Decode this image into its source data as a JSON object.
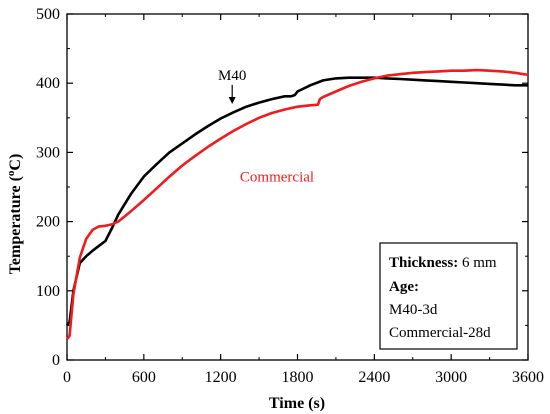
{
  "chart_data": {
    "type": "line",
    "xlabel": "Time (s)",
    "ylabel_main": "Temperature (",
    "ylabel_sup": "o",
    "ylabel_tail": "C)",
    "xlim": [
      0,
      3600
    ],
    "ylim": [
      0,
      500
    ],
    "x_ticks": [
      0,
      600,
      1200,
      1800,
      2400,
      3000,
      3600
    ],
    "y_ticks": [
      0,
      100,
      200,
      300,
      400,
      500
    ],
    "grid": false,
    "series": [
      {
        "name": "M40",
        "color": "#000000",
        "x": [
          0,
          20,
          50,
          100,
          150,
          200,
          250,
          300,
          350,
          400,
          500,
          600,
          700,
          800,
          900,
          1000,
          1100,
          1200,
          1300,
          1400,
          1500,
          1600,
          1700,
          1750,
          1780,
          1800,
          1900,
          2000,
          2100,
          2200,
          2300,
          2400,
          2500,
          2600,
          2700,
          2800,
          2900,
          3000,
          3100,
          3200,
          3300,
          3400,
          3500,
          3600
        ],
        "y": [
          50,
          55,
          100,
          140,
          150,
          158,
          165,
          172,
          190,
          210,
          240,
          265,
          283,
          300,
          313,
          326,
          338,
          349,
          358,
          366,
          372,
          377,
          381,
          381,
          383,
          388,
          397,
          404,
          407,
          408,
          408,
          408,
          407,
          406,
          405,
          404,
          403,
          402,
          401,
          400,
          399,
          398,
          397,
          397
        ]
      },
      {
        "name": "Commercial",
        "color": "#ee1c1c",
        "x": [
          0,
          20,
          50,
          100,
          150,
          200,
          250,
          300,
          350,
          400,
          500,
          600,
          700,
          800,
          900,
          1000,
          1100,
          1200,
          1300,
          1400,
          1500,
          1600,
          1700,
          1800,
          1900,
          1960,
          1975,
          2000,
          2100,
          2200,
          2300,
          2400,
          2500,
          2600,
          2700,
          2800,
          2900,
          3000,
          3100,
          3200,
          3300,
          3400,
          3500,
          3600
        ],
        "y": [
          30,
          35,
          95,
          148,
          175,
          188,
          193,
          194,
          196,
          200,
          215,
          231,
          248,
          265,
          281,
          295,
          308,
          320,
          331,
          341,
          350,
          357,
          362,
          366,
          368,
          369,
          377,
          380,
          388,
          396,
          402,
          407,
          411,
          413,
          415,
          416,
          417,
          418,
          418,
          419,
          418,
          417,
          415,
          412
        ]
      }
    ],
    "annotations": [
      {
        "text": "M40",
        "color": "#000000",
        "arrow_to": [
          1290,
          370
        ],
        "text_at": [
          1290,
          412
        ]
      },
      {
        "text": "Commercial",
        "color": "#ee1c1c",
        "text_at": [
          1640,
          265
        ]
      }
    ],
    "legend_box": {
      "thickness_label": "Thickness:",
      "thickness_value": " 6 mm",
      "age_label": "Age:",
      "age_lines": [
        "M40-3d",
        "Commercial-28d"
      ],
      "placement": "bottom-right"
    }
  }
}
